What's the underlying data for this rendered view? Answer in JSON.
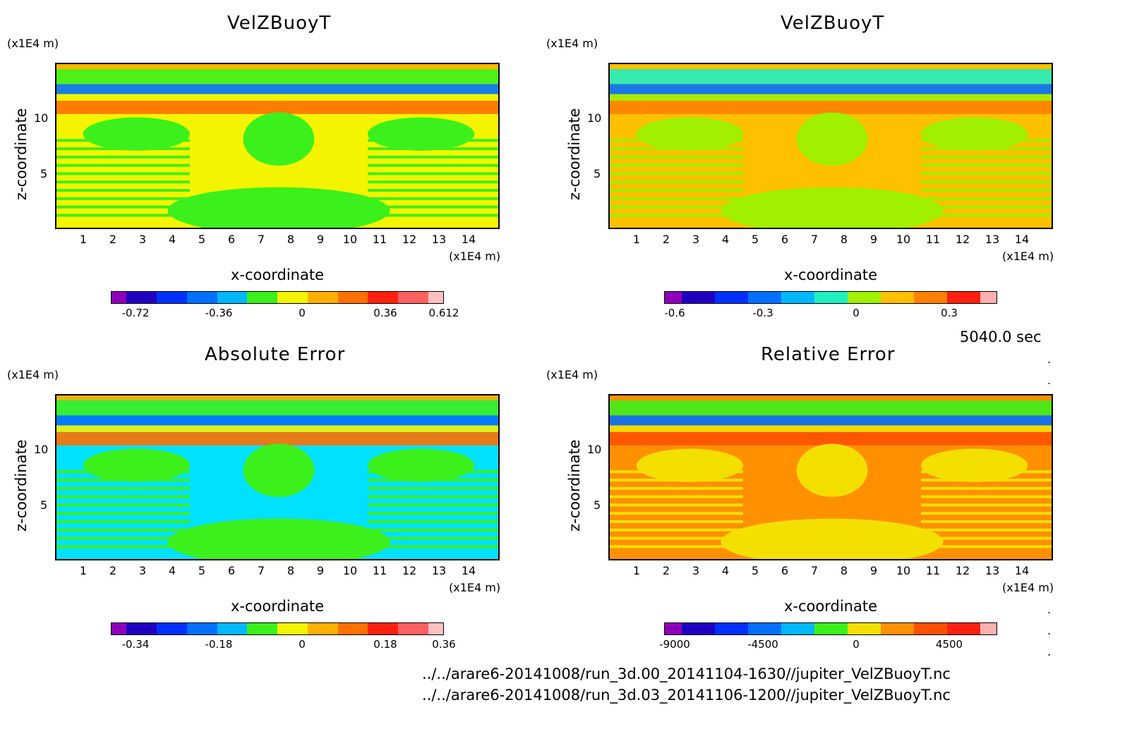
{
  "time_label": "5040.0 sec",
  "paths": [
    "../../arare6-20141008/run_3d.00_20141104-1630//jupiter_VelZBuoyT.nc",
    "../../arare6-20141008/run_3d.03_20141106-1200//jupiter_VelZBuoyT.nc"
  ],
  "chart_data": [
    {
      "type": "heatmap",
      "title": "VelZBuoyT",
      "xlabel": "x-coordinate",
      "ylabel": "z-coordinate",
      "x_unit": "(x1E4 m)",
      "y_unit": "(x1E4 m)",
      "x_ticks": [
        "1",
        "2",
        "3",
        "4",
        "5",
        "6",
        "7",
        "8",
        "9",
        "10",
        "11",
        "12",
        "13",
        "14"
      ],
      "y_ticks": [
        "5",
        "10"
      ],
      "colorbar_labels": [
        "-0.72",
        "-0.36",
        "0",
        "0.36",
        "0.612"
      ],
      "colors": [
        "#8e00b8",
        "#2000c0",
        "#0030ff",
        "#0070ff",
        "#00b8ff",
        "#3cf01c",
        "#f4f400",
        "#ffb000",
        "#ff7000",
        "#ff2010",
        "#ff6060",
        "#ffc0c0"
      ],
      "background": "#f4f400",
      "accent": "#3cf01c"
    },
    {
      "type": "heatmap",
      "title": "VelZBuoyT",
      "xlabel": "x-coordinate",
      "ylabel": "z-coordinate",
      "x_unit": "(x1E4 m)",
      "y_unit": "(x1E4 m)",
      "x_ticks": [
        "1",
        "2",
        "3",
        "4",
        "5",
        "6",
        "7",
        "8",
        "9",
        "10",
        "11",
        "12",
        "13",
        "14"
      ],
      "y_ticks": [
        "5",
        "10"
      ],
      "colorbar_labels": [
        "-0.6",
        "-0.3",
        "0",
        "0.3"
      ],
      "colors": [
        "#8e00b8",
        "#2000c0",
        "#0030ff",
        "#0070ff",
        "#00b8ff",
        "#20f0c0",
        "#a0f000",
        "#ffc000",
        "#ff8000",
        "#ff2010",
        "#ffb0b0"
      ],
      "background": "#ffc000",
      "accent": "#a0f000"
    },
    {
      "type": "heatmap",
      "title": "Absolute Error",
      "xlabel": "x-coordinate",
      "ylabel": "z-coordinate",
      "x_unit": "(x1E4 m)",
      "y_unit": "(x1E4 m)",
      "x_ticks": [
        "1",
        "2",
        "3",
        "4",
        "5",
        "6",
        "7",
        "8",
        "9",
        "10",
        "11",
        "12",
        "13",
        "14"
      ],
      "y_ticks": [
        "5",
        "10"
      ],
      "colorbar_labels": [
        "-0.34",
        "-0.18",
        "0",
        "0.18",
        "0.36"
      ],
      "colors": [
        "#8e00b8",
        "#2000c0",
        "#0030ff",
        "#0070ff",
        "#00b8ff",
        "#3cf01c",
        "#f4f400",
        "#ffb000",
        "#ff7000",
        "#ff2010",
        "#ff6060",
        "#ffc0c0"
      ],
      "background": "#00e0ff",
      "accent": "#3cf01c"
    },
    {
      "type": "heatmap",
      "title": "Relative Error",
      "xlabel": "x-coordinate",
      "ylabel": "z-coordinate",
      "x_unit": "(x1E4 m)",
      "y_unit": "(x1E4 m)",
      "x_ticks": [
        "1",
        "2",
        "3",
        "4",
        "5",
        "6",
        "7",
        "8",
        "9",
        "10",
        "11",
        "12",
        "13",
        "14"
      ],
      "y_ticks": [
        "5",
        "10"
      ],
      "colorbar_labels": [
        "-9000",
        "-4500",
        "0",
        "4500"
      ],
      "colors": [
        "#8e00b8",
        "#2000c0",
        "#0030ff",
        "#0070ff",
        "#00b8ff",
        "#3cf01c",
        "#f4e000",
        "#ff9000",
        "#ff5000",
        "#ff2010",
        "#ffb0b0"
      ],
      "background": "#ff9000",
      "accent": "#f4e000"
    }
  ]
}
